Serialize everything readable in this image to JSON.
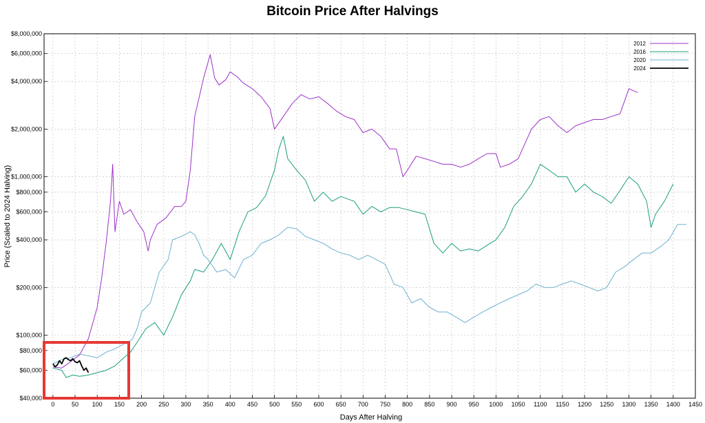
{
  "chart_data": {
    "type": "line",
    "title": "Bitcoin Price After Halvings",
    "xlabel": "Days After Halving",
    "ylabel": "Price (Scaled to 2024 Halving)",
    "xlim": [
      -20,
      1450
    ],
    "ylim": [
      40000,
      8000000
    ],
    "yscale": "log",
    "grid": true,
    "legend_position": "top-right",
    "x_ticks": [
      0,
      50,
      100,
      150,
      200,
      250,
      300,
      350,
      400,
      450,
      500,
      550,
      600,
      650,
      700,
      750,
      800,
      850,
      900,
      950,
      1000,
      1050,
      1100,
      1150,
      1200,
      1250,
      1300,
      1350,
      1400,
      1450
    ],
    "y_ticks": [
      {
        "value": 40000,
        "label": "$40,000"
      },
      {
        "value": 60000,
        "label": "$60,000"
      },
      {
        "value": 80000,
        "label": "$80,000"
      },
      {
        "value": 100000,
        "label": "$100,000"
      },
      {
        "value": 200000,
        "label": "$200,000"
      },
      {
        "value": 400000,
        "label": "$400,000"
      },
      {
        "value": 600000,
        "label": "$600,000"
      },
      {
        "value": 800000,
        "label": "$800,000"
      },
      {
        "value": 1000000,
        "label": "$1,000,000"
      },
      {
        "value": 2000000,
        "label": "$2,000,000"
      },
      {
        "value": 4000000,
        "label": "$4,000,000"
      },
      {
        "value": 6000000,
        "label": "$6,000,000"
      },
      {
        "value": 8000000,
        "label": "$8,000,000"
      }
    ],
    "series": [
      {
        "name": "2012",
        "color": "#9b30c8",
        "x": [
          0,
          20,
          40,
          60,
          80,
          100,
          110,
          120,
          130,
          135,
          140,
          150,
          160,
          175,
          190,
          205,
          215,
          220,
          235,
          255,
          275,
          290,
          300,
          310,
          320,
          340,
          355,
          365,
          375,
          390,
          400,
          415,
          430,
          450,
          470,
          490,
          500,
          520,
          540,
          560,
          580,
          600,
          620,
          640,
          660,
          680,
          700,
          720,
          740,
          760,
          775,
          790,
          800,
          820,
          840,
          860,
          880,
          900,
          920,
          940,
          960,
          980,
          1000,
          1010,
          1030,
          1050,
          1060,
          1080,
          1100,
          1120,
          1140,
          1160,
          1180,
          1200,
          1220,
          1240,
          1260,
          1280,
          1300,
          1320
        ],
        "y": [
          63000,
          62000,
          68000,
          75000,
          95000,
          150000,
          230000,
          380000,
          700000,
          1200000,
          450000,
          700000,
          580000,
          620000,
          520000,
          450000,
          340000,
          400000,
          500000,
          550000,
          650000,
          650000,
          700000,
          1100000,
          2400000,
          4200000,
          5900000,
          4200000,
          3800000,
          4100000,
          4600000,
          4300000,
          3900000,
          3600000,
          3200000,
          2700000,
          2000000,
          2400000,
          2900000,
          3300000,
          3100000,
          3200000,
          2900000,
          2600000,
          2400000,
          2300000,
          1900000,
          2000000,
          1800000,
          1500000,
          1500000,
          1000000,
          1100000,
          1350000,
          1300000,
          1250000,
          1200000,
          1200000,
          1150000,
          1200000,
          1300000,
          1400000,
          1400000,
          1150000,
          1200000,
          1300000,
          1500000,
          2000000,
          2300000,
          2400000,
          2100000,
          1900000,
          2100000,
          2200000,
          2300000,
          2300000,
          2400000,
          2500000,
          3600000,
          3400000
        ]
      },
      {
        "name": "2016",
        "color": "#1a9c7e",
        "x": [
          0,
          20,
          30,
          45,
          60,
          80,
          100,
          120,
          140,
          160,
          175,
          190,
          210,
          230,
          250,
          270,
          290,
          310,
          320,
          340,
          360,
          380,
          400,
          420,
          440,
          460,
          480,
          500,
          510,
          520,
          530,
          550,
          570,
          590,
          610,
          630,
          650,
          680,
          700,
          720,
          740,
          760,
          780,
          800,
          820,
          840,
          860,
          880,
          900,
          920,
          940,
          960,
          980,
          1000,
          1020,
          1040,
          1060,
          1080,
          1100,
          1120,
          1140,
          1160,
          1180,
          1200,
          1220,
          1240,
          1260,
          1280,
          1300,
          1320,
          1340,
          1350,
          1360,
          1380,
          1400
        ],
        "y": [
          62000,
          60000,
          54000,
          56000,
          55000,
          56000,
          58000,
          60000,
          64000,
          72000,
          78000,
          90000,
          110000,
          120000,
          100000,
          130000,
          180000,
          220000,
          260000,
          250000,
          300000,
          380000,
          300000,
          450000,
          600000,
          640000,
          760000,
          1100000,
          1500000,
          1800000,
          1300000,
          1100000,
          950000,
          700000,
          800000,
          700000,
          750000,
          700000,
          580000,
          650000,
          600000,
          640000,
          640000,
          620000,
          600000,
          580000,
          380000,
          330000,
          380000,
          340000,
          350000,
          340000,
          370000,
          400000,
          480000,
          650000,
          750000,
          900000,
          1200000,
          1100000,
          1000000,
          1000000,
          800000,
          900000,
          800000,
          750000,
          680000,
          820000,
          1000000,
          900000,
          700000,
          480000,
          580000,
          700000,
          900000
        ]
      },
      {
        "name": "2020",
        "color": "#6ab0d0",
        "x": [
          0,
          20,
          40,
          60,
          80,
          100,
          120,
          140,
          160,
          170,
          180,
          190,
          200,
          220,
          240,
          260,
          270,
          290,
          310,
          320,
          330,
          340,
          350,
          370,
          390,
          410,
          430,
          450,
          470,
          490,
          510,
          530,
          550,
          570,
          590,
          610,
          630,
          650,
          670,
          690,
          710,
          730,
          750,
          770,
          790,
          810,
          830,
          850,
          870,
          890,
          910,
          930,
          950,
          970,
          990,
          1010,
          1030,
          1050,
          1070,
          1090,
          1110,
          1130,
          1150,
          1170,
          1190,
          1210,
          1230,
          1250,
          1270,
          1290,
          1310,
          1330,
          1350,
          1370,
          1390,
          1410,
          1430
        ],
        "y": [
          66000,
          70000,
          72000,
          76000,
          74000,
          72000,
          78000,
          82000,
          88000,
          90000,
          95000,
          110000,
          140000,
          160000,
          250000,
          300000,
          400000,
          420000,
          450000,
          430000,
          380000,
          320000,
          300000,
          250000,
          260000,
          230000,
          300000,
          320000,
          380000,
          400000,
          430000,
          480000,
          470000,
          420000,
          400000,
          380000,
          350000,
          330000,
          320000,
          300000,
          320000,
          300000,
          280000,
          210000,
          200000,
          160000,
          170000,
          150000,
          140000,
          140000,
          130000,
          120000,
          130000,
          140000,
          150000,
          160000,
          170000,
          180000,
          190000,
          210000,
          200000,
          200000,
          210000,
          220000,
          210000,
          200000,
          190000,
          200000,
          250000,
          270000,
          300000,
          330000,
          330000,
          360000,
          400000,
          500000,
          500000
        ]
      },
      {
        "name": "2024",
        "color": "#000000",
        "x": [
          0,
          5,
          10,
          15,
          20,
          25,
          30,
          35,
          40,
          45,
          50,
          55,
          60,
          65,
          70,
          75,
          80
        ],
        "y": [
          66000,
          63000,
          65000,
          69000,
          66000,
          71000,
          72000,
          70000,
          69000,
          71000,
          68000,
          67000,
          69000,
          64000,
          60000,
          62000,
          58000
        ]
      }
    ]
  }
}
